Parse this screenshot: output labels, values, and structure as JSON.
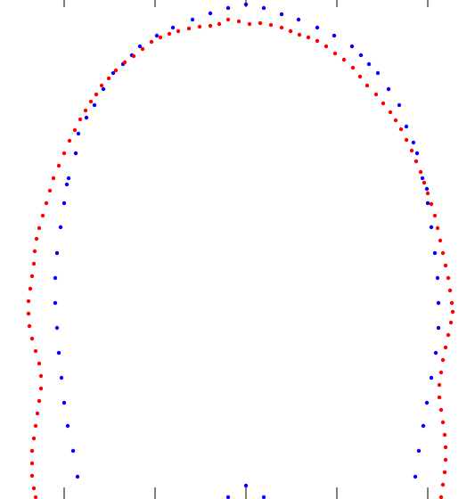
{
  "chart_data": {
    "type": "scatter",
    "title": "",
    "xlabel": "",
    "ylabel": "",
    "xlim": [
      0,
      533
    ],
    "ylim": [
      0,
      560
    ],
    "y_inverted": true,
    "grid": false,
    "legend": "none",
    "tick_labels_shown": false,
    "x_ticks": [
      72,
      174,
      276,
      378,
      480
    ],
    "series": [
      {
        "color": "#0000ff",
        "marker": "dot",
        "points": [
          [
            276,
            5
          ],
          [
            256,
            9
          ],
          [
            236,
            15
          ],
          [
            296,
            9
          ],
          [
            316,
            16
          ],
          [
            216,
            22
          ],
          [
            335,
            22
          ],
          [
            194,
            31
          ],
          [
            356,
            31
          ],
          [
            375,
            40
          ],
          [
            176,
            40
          ],
          [
            157,
            52
          ],
          [
            395,
            52
          ],
          [
            148,
            62
          ],
          [
            405,
            62
          ],
          [
            138,
            72
          ],
          [
            414,
            72
          ],
          [
            127,
            82
          ],
          [
            424,
            82
          ],
          [
            116,
            100
          ],
          [
            436,
            100
          ],
          [
            106,
            118
          ],
          [
            448,
            118
          ],
          [
            97,
            132
          ],
          [
            456,
            142
          ],
          [
            88,
            150
          ],
          [
            464,
            160
          ],
          [
            85,
            172
          ],
          [
            468,
            172
          ],
          [
            77,
            200
          ],
          [
            474,
            200
          ],
          [
            75,
            207
          ],
          [
            479,
            212
          ],
          [
            72,
            228
          ],
          [
            480,
            228
          ],
          [
            68,
            255
          ],
          [
            484,
            255
          ],
          [
            64,
            284
          ],
          [
            488,
            284
          ],
          [
            62,
            312
          ],
          [
            491,
            312
          ],
          [
            62,
            340
          ],
          [
            492,
            340
          ],
          [
            64,
            368
          ],
          [
            492,
            368
          ],
          [
            66,
            396
          ],
          [
            489,
            396
          ],
          [
            69,
            424
          ],
          [
            484,
            424
          ],
          [
            72,
            452
          ],
          [
            479,
            452
          ],
          [
            76,
            478
          ],
          [
            475,
            478
          ],
          [
            82,
            506
          ],
          [
            470,
            506
          ],
          [
            87,
            535
          ],
          [
            466,
            535
          ],
          [
            276,
            545
          ],
          [
            256,
            558
          ],
          [
            296,
            558
          ]
        ]
      },
      {
        "color": "#ff0000",
        "marker": "dot",
        "points": [
          [
            256,
            22
          ],
          [
            268,
            24
          ],
          [
            280,
            27
          ],
          [
            292,
            26
          ],
          [
            304,
            28
          ],
          [
            246,
            27
          ],
          [
            236,
            29
          ],
          [
            224,
            30
          ],
          [
            212,
            32
          ],
          [
            316,
            31
          ],
          [
            326,
            35
          ],
          [
            336,
            39
          ],
          [
            346,
            42
          ],
          [
            356,
            46
          ],
          [
            366,
            52
          ],
          [
            376,
            60
          ],
          [
            386,
            67
          ],
          [
            396,
            76
          ],
          [
            404,
            86
          ],
          [
            412,
            96
          ],
          [
            422,
            106
          ],
          [
            430,
            116
          ],
          [
            438,
            126
          ],
          [
            444,
            135
          ],
          [
            450,
            145
          ],
          [
            456,
            157
          ],
          [
            462,
            169
          ],
          [
            467,
            181
          ],
          [
            472,
            193
          ],
          [
            476,
            205
          ],
          [
            480,
            217
          ],
          [
            484,
            229
          ],
          [
            488,
            242
          ],
          [
            491,
            256
          ],
          [
            494,
            270
          ],
          [
            497,
            284
          ],
          [
            500,
            298
          ],
          [
            503,
            312
          ],
          [
            505,
            326
          ],
          [
            507,
            340
          ],
          [
            508,
            350
          ],
          [
            506,
            362
          ],
          [
            503,
            376
          ],
          [
            500,
            390
          ],
          [
            497,
            404
          ],
          [
            495,
            418
          ],
          [
            493,
            432
          ],
          [
            493,
            446
          ],
          [
            495,
            460
          ],
          [
            497,
            474
          ],
          [
            499,
            488
          ],
          [
            500,
            502
          ],
          [
            500,
            516
          ],
          [
            499,
            530
          ],
          [
            497,
            544
          ],
          [
            495,
            558
          ],
          [
            200,
            35
          ],
          [
            190,
            38
          ],
          [
            180,
            42
          ],
          [
            170,
            47
          ],
          [
            160,
            55
          ],
          [
            150,
            63
          ],
          [
            140,
            70
          ],
          [
            130,
            79
          ],
          [
            122,
            88
          ],
          [
            114,
            96
          ],
          [
            108,
            106
          ],
          [
            102,
            114
          ],
          [
            96,
            124
          ],
          [
            90,
            134
          ],
          [
            84,
            146
          ],
          [
            78,
            158
          ],
          [
            72,
            172
          ],
          [
            66,
            186
          ],
          [
            60,
            200
          ],
          [
            56,
            214
          ],
          [
            52,
            228
          ],
          [
            48,
            242
          ],
          [
            44,
            256
          ],
          [
            41,
            268
          ],
          [
            39,
            282
          ],
          [
            38,
            296
          ],
          [
            36,
            310
          ],
          [
            34,
            324
          ],
          [
            32,
            338
          ],
          [
            32,
            352
          ],
          [
            33,
            366
          ],
          [
            36,
            380
          ],
          [
            40,
            394
          ],
          [
            44,
            408
          ],
          [
            46,
            422
          ],
          [
            46,
            436
          ],
          [
            44,
            450
          ],
          [
            42,
            464
          ],
          [
            40,
            478
          ],
          [
            38,
            492
          ],
          [
            36,
            506
          ],
          [
            36,
            520
          ],
          [
            36,
            534
          ],
          [
            38,
            548
          ],
          [
            40,
            558
          ]
        ]
      }
    ]
  }
}
